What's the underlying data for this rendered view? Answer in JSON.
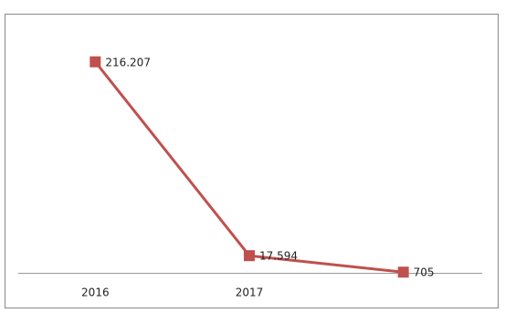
{
  "chart_data": {
    "type": "line",
    "categories": [
      "2016",
      "2017",
      null
    ],
    "series": [
      {
        "color": "#c0504d",
        "values": [
          216207,
          17594,
          705
        ],
        "value_labels": [
          "216.207",
          "17.594",
          "705"
        ]
      }
    ],
    "ylim": [
      0,
      230000
    ]
  }
}
